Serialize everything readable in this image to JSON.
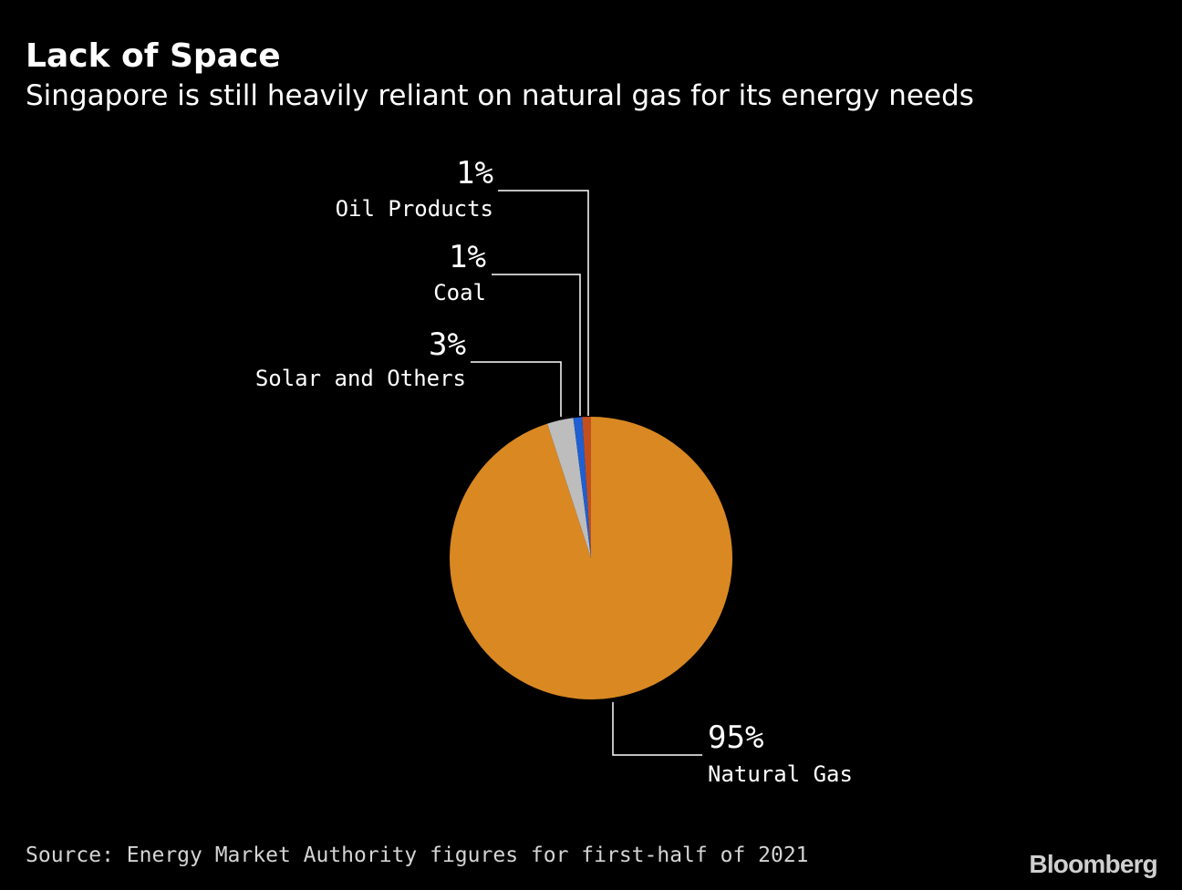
{
  "header": {
    "title": "Lack of Space",
    "subtitle": "Singapore is still heavily reliant on natural gas for its energy needs"
  },
  "chart_data": {
    "type": "pie",
    "start_angle_deg": 0,
    "direction": "clockwise",
    "slices": [
      {
        "label": "Natural Gas",
        "value": 95,
        "display": "95%",
        "color": "#d98822"
      },
      {
        "label": "Solar and Others",
        "value": 3,
        "display": "3%",
        "color": "#bdbdbd"
      },
      {
        "label": "Coal",
        "value": 1,
        "display": "1%",
        "color": "#1f5fd1"
      },
      {
        "label": "Oil Products",
        "value": 1,
        "display": "1%",
        "color": "#c2501f"
      }
    ],
    "leader_line_color": "#ffffff"
  },
  "footer": {
    "source": "Source: Energy Market Authority figures for first-half of 2021",
    "brand": "Bloomberg"
  }
}
